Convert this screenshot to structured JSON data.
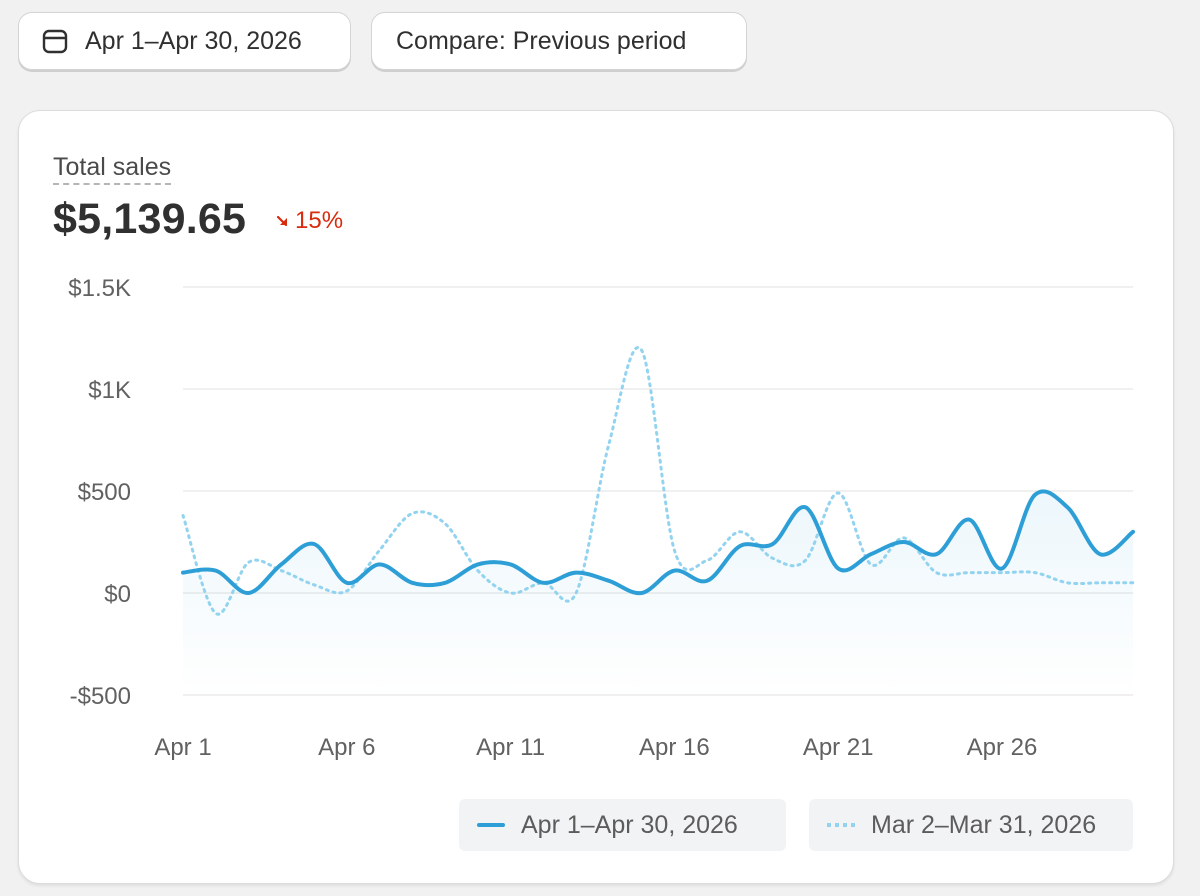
{
  "toolbar": {
    "date_range_label": "Apr 1–Apr 30, 2026",
    "date_range_icon": "calendar-icon",
    "compare_label": "Compare: Previous period"
  },
  "metric": {
    "label": "Total sales",
    "value": "$5,139.65",
    "change": "15%",
    "change_direction": "down",
    "change_color": "#d72c0d"
  },
  "legend": {
    "current": "Apr 1–Apr 30, 2026",
    "previous": "Mar 2–Mar 31, 2026"
  },
  "chart_data": {
    "type": "line",
    "x": [
      1,
      2,
      3,
      4,
      5,
      6,
      7,
      8,
      9,
      10,
      11,
      12,
      13,
      14,
      15,
      16,
      17,
      18,
      19,
      20,
      21,
      22,
      23,
      24,
      25,
      26,
      27,
      28,
      29,
      30
    ],
    "x_tick_labels": [
      "Apr 1",
      "Apr 6",
      "Apr 11",
      "Apr 16",
      "Apr 21",
      "Apr 26"
    ],
    "x_ticks": [
      1,
      6,
      11,
      16,
      21,
      26
    ],
    "y_tick_labels": [
      "$1.5K",
      "$1K",
      "$500",
      "$0",
      "-$500"
    ],
    "y_ticks": [
      1500,
      1000,
      500,
      0,
      -500
    ],
    "ylim": [
      -500,
      1500
    ],
    "grid": true,
    "legend_position": "bottom-right",
    "series": [
      {
        "name": "Apr 1–Apr 30, 2026",
        "style": "solid",
        "color": "#2e9fd6",
        "values": [
          100,
          110,
          0,
          140,
          240,
          50,
          140,
          50,
          50,
          140,
          140,
          50,
          100,
          60,
          0,
          110,
          60,
          230,
          240,
          420,
          120,
          190,
          250,
          190,
          360,
          120,
          480,
          420,
          190,
          300
        ]
      },
      {
        "name": "Mar 2–Mar 31, 2026",
        "style": "dotted",
        "color": "#92d3ef",
        "values": [
          380,
          -100,
          150,
          110,
          40,
          10,
          210,
          390,
          340,
          110,
          0,
          50,
          0,
          730,
          1190,
          210,
          160,
          300,
          170,
          160,
          490,
          140,
          270,
          100,
          100,
          100,
          100,
          50,
          50,
          50
        ]
      }
    ]
  }
}
